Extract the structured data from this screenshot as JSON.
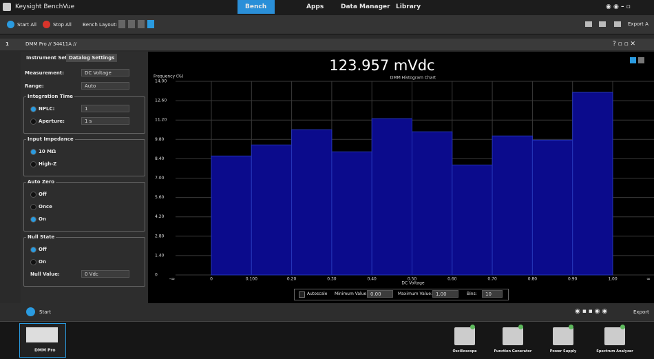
{
  "header": {
    "title": "Keysight BenchVue",
    "tabs": [
      "Bench",
      "Apps",
      "Data Manager",
      "Library"
    ]
  },
  "toolbar": {
    "start_all": "Start All",
    "stop_all": "Stop All",
    "bench_layout": "Bench Layout:",
    "export": "Export A"
  },
  "window": {
    "index": "1",
    "title": "DMM Pro // 34411A //"
  },
  "settings": {
    "tabs": [
      "Instrument Settings",
      "Datalog Settings"
    ],
    "rows": [
      {
        "label": "Measurement:",
        "value": "DC Voltage"
      },
      {
        "label": "Range:",
        "value": "Auto"
      }
    ],
    "groups": [
      {
        "title": "Integration Time",
        "selected": 0,
        "options": [
          {
            "label": "NPLC:",
            "value": "1"
          },
          {
            "label": "Aperture:",
            "value": "1 s"
          }
        ]
      },
      {
        "title": "Input Impedance",
        "selected": 0,
        "options": [
          {
            "label": "10 MΩ"
          },
          {
            "label": "High-Z"
          }
        ]
      },
      {
        "title": "Auto Zero",
        "selected": 2,
        "options": [
          {
            "label": "Off"
          },
          {
            "label": "Once"
          },
          {
            "label": "On"
          }
        ]
      },
      {
        "title": "Null State",
        "selected": 0,
        "options": [
          {
            "label": "Off"
          },
          {
            "label": "On"
          }
        ],
        "fields": [
          {
            "label": "Null Value:",
            "value": "0 Vdc"
          }
        ]
      }
    ]
  },
  "reading": "123.957 mVdc",
  "chart_data": {
    "type": "histogram",
    "title": "DMM Histogram Chart",
    "y_label": "Frequency (%)",
    "x_label": "DC Voltage",
    "bins": [
      0,
      0.1,
      0.2,
      0.3,
      0.4,
      0.5,
      0.6,
      0.7,
      0.8,
      0.9,
      1.0
    ],
    "values": [
      8.6,
      9.4,
      10.5,
      8.9,
      11.3,
      10.35,
      7.95,
      10.05,
      9.75,
      13.2
    ],
    "color": "#0b0b8c",
    "xlim": [
      0,
      1
    ],
    "ylim": [
      0,
      14
    ],
    "xticks": [
      0,
      {
        "value": 0.1,
        "label": "0.100"
      },
      {
        "value": 0.2,
        "label": "0.20"
      },
      {
        "value": 0.3,
        "label": "0.30"
      },
      {
        "value": 0.4,
        "label": "0.40"
      },
      {
        "value": 0.5,
        "label": "0.50"
      },
      {
        "value": 0.6,
        "label": "0.60"
      },
      {
        "value": 0.7,
        "label": "0.70"
      },
      {
        "value": 0.8,
        "label": "0.80"
      },
      {
        "value": 0.9,
        "label": "0.90"
      },
      {
        "value": 1,
        "label": "1.00"
      }
    ],
    "yticks": [
      0,
      {
        "value": 1.4,
        "label": "1.40"
      },
      {
        "value": 2.8,
        "label": "2.80"
      },
      {
        "value": 4.2,
        "label": "4.20"
      },
      {
        "value": 5.6,
        "label": "5.60"
      },
      {
        "value": 7,
        "label": "7.00"
      },
      {
        "value": 8.4,
        "label": "8.40"
      },
      {
        "value": 9.8,
        "label": "9.80"
      },
      {
        "value": 11.2,
        "label": "11.20"
      },
      {
        "value": 12.6,
        "label": "12.60"
      },
      {
        "value": 14,
        "label": "14.00"
      }
    ],
    "underflow_label": "-∞",
    "overflow_label": "∞",
    "grid": true
  },
  "chart_controls": {
    "autoscale": "Autoscale",
    "min_label": "Minimum Value:",
    "min": "0.00",
    "max_label": "Maximum Value:",
    "max": "1.00",
    "bins_label": "Bins:",
    "bins": "10"
  },
  "footer": {
    "start": "Start",
    "export": "Export"
  },
  "dock": {
    "instruments": [
      "DMM Pro"
    ],
    "apps": [
      "Oscilloscope",
      "Function Generator",
      "Power Supply",
      "Spectrum Analyzer"
    ]
  }
}
